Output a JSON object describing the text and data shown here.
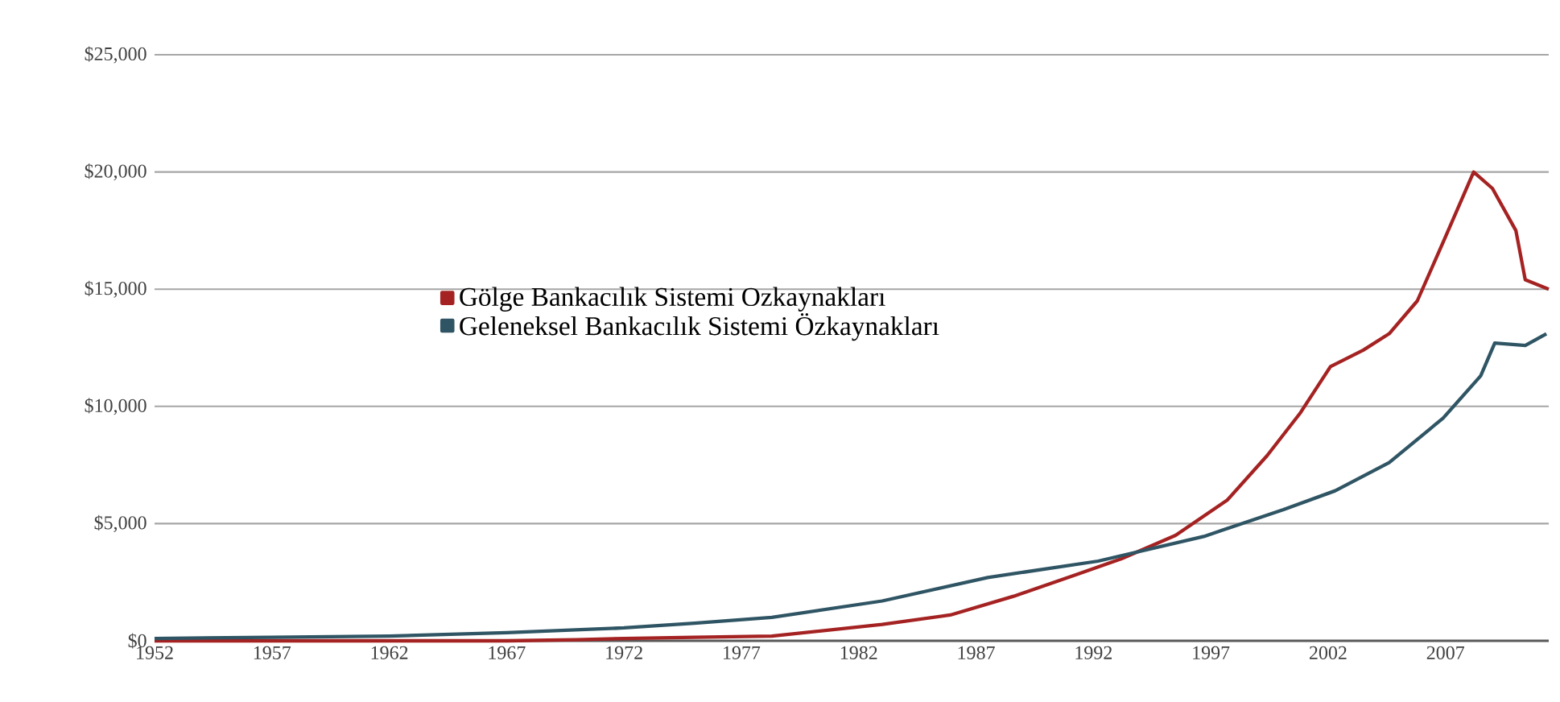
{
  "chart_data": {
    "type": "line",
    "series": [
      {
        "name": "Gölge Bankacılık Sistemi Ozkaynakları",
        "color": "#a52222",
        "x": [
          1952,
          1957,
          1962,
          1967,
          1970,
          1972,
          1975,
          1978.3,
          1983,
          1985.9,
          1988.6,
          1991.2,
          1993.2,
          1995.5,
          1997.7,
          1999.4,
          2000.8,
          2002.1,
          2003.5,
          2004.6,
          2005.8,
          2006.9,
          2008.2,
          2009.0,
          2010.0,
          2010.4,
          2011.4
        ],
        "values": [
          0,
          0,
          0,
          0,
          50,
          100,
          150,
          200,
          700,
          1100,
          1900,
          2800,
          3500,
          4500,
          6000,
          7900,
          9700,
          11700,
          12400,
          13100,
          14500,
          17000,
          20000,
          19300,
          17500,
          15400,
          15000
        ]
      },
      {
        "name": "Geleneksel Bankacılık Sistemi Özkaynakları",
        "color": "#2f5564",
        "x": [
          1952,
          1957,
          1962,
          1967,
          1972,
          1975,
          1978.3,
          1983,
          1987.5,
          1992.2,
          1996.7,
          2000.1,
          2002.3,
          2004.6,
          2006.9,
          2008.5,
          2009.1,
          2010.4,
          2011.3
        ],
        "values": [
          100,
          150,
          200,
          350,
          550,
          750,
          1000,
          1700,
          2700,
          3400,
          4450,
          5600,
          6400,
          7600,
          9500,
          11300,
          12700,
          12600,
          13100
        ]
      }
    ],
    "xlim": [
      1952,
      2011.4
    ],
    "xticks": [
      1952,
      1957,
      1962,
      1967,
      1972,
      1977,
      1982,
      1987,
      1992,
      1997,
      2002,
      2007
    ],
    "ylim": [
      0,
      25000
    ],
    "yticks": [
      {
        "value": 0,
        "label": "$0"
      },
      {
        "value": 5000,
        "label": "$5,000"
      },
      {
        "value": 10000,
        "label": "$10,000"
      },
      {
        "value": 15000,
        "label": "$15,000"
      },
      {
        "value": 20000,
        "label": "$20,000"
      },
      {
        "value": 25000,
        "label": "$25,000"
      }
    ],
    "grid": "y",
    "legend": "left",
    "marker": "none",
    "line_style": "solid"
  }
}
